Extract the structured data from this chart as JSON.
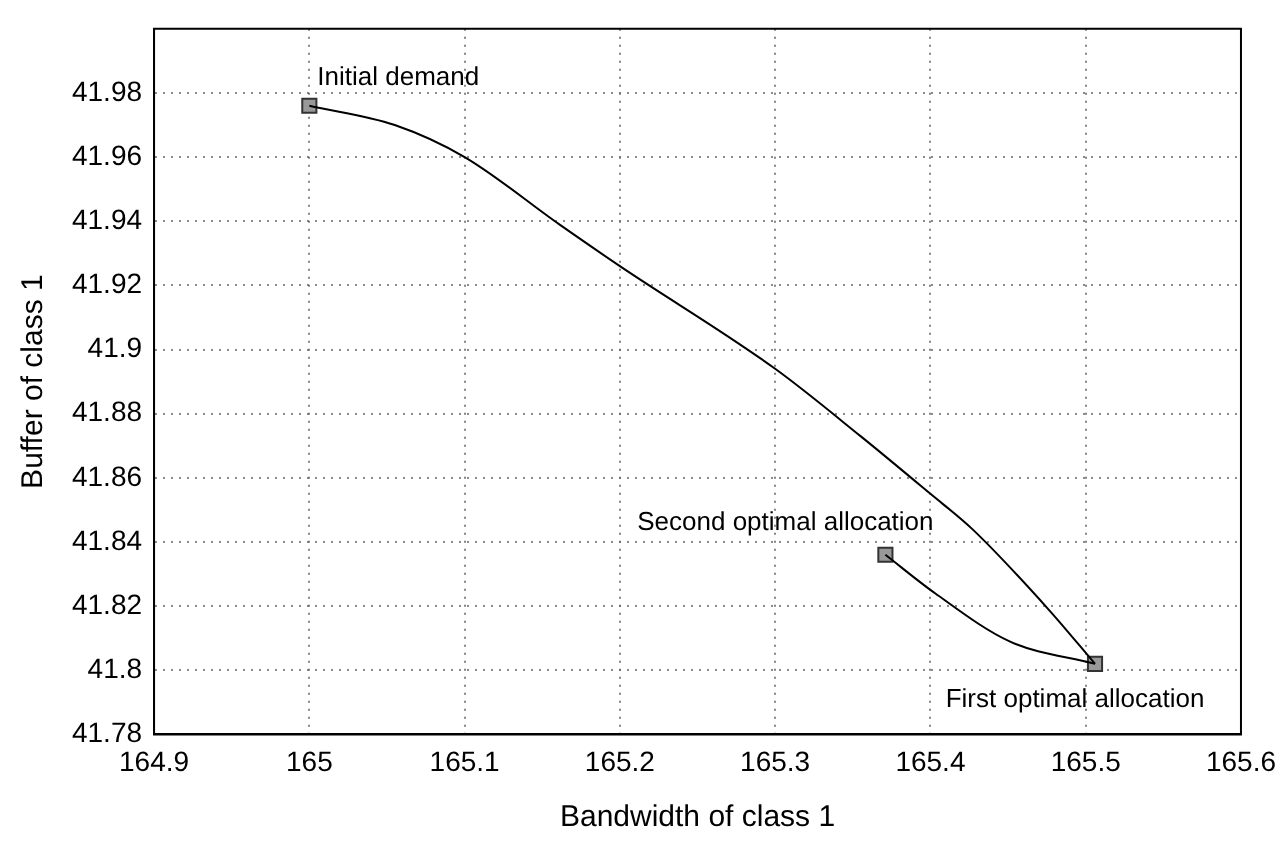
{
  "chart_data": {
    "type": "line",
    "xlabel": "Bandwidth of class 1",
    "ylabel": "Buffer of class 1",
    "xlim": [
      164.9,
      165.6
    ],
    "xticks": [
      164.9,
      165,
      165.1,
      165.2,
      165.3,
      165.4,
      165.5,
      165.6
    ],
    "ylim": [
      41.78,
      42.0
    ],
    "yticks": [
      41.78,
      41.8,
      41.82,
      41.84,
      41.86,
      41.88,
      41.9,
      41.92,
      41.94,
      41.96,
      41.98
    ],
    "grid": true,
    "legend": false,
    "series": [
      {
        "color": "#000000",
        "marker": "none",
        "x": [
          165.0,
          165.055,
          165.1,
          165.161,
          165.2,
          165.3,
          165.355,
          165.4,
          165.427,
          165.476,
          165.506
        ],
        "values": [
          41.976,
          41.97,
          41.96,
          41.939,
          41.926,
          41.894,
          41.873,
          41.855,
          41.844,
          41.819,
          41.802
        ]
      },
      {
        "color": "#000000",
        "marker": "none",
        "x": [
          165.371,
          165.403,
          165.451,
          165.506
        ],
        "values": [
          41.836,
          41.824,
          41.809,
          41.802
        ]
      },
      {
        "type": "scatter",
        "color": "#999999",
        "marker": "square",
        "x": [
          165.0,
          165.371,
          165.506
        ],
        "values": [
          41.976,
          41.836,
          41.802
        ]
      }
    ],
    "annotations": [
      {
        "text": "Initial demand",
        "x": 165.0,
        "y": 41.976
      },
      {
        "text": "Second optimal allocation",
        "x": 165.371,
        "y": 41.836
      },
      {
        "text": "First optimal allocation",
        "x": 165.506,
        "y": 41.802
      }
    ]
  }
}
